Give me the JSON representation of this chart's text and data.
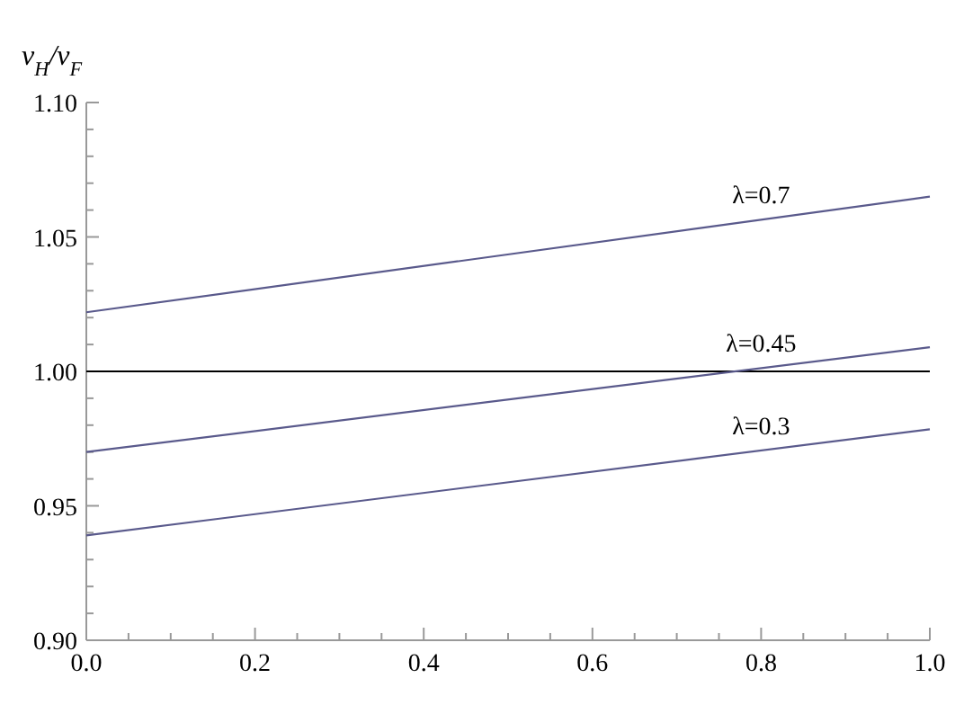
{
  "chart_data": {
    "type": "line",
    "ylabel": "v$_{H}$/v$_{F}$",
    "x": [
      0,
      1
    ],
    "series": [
      {
        "name": "λ=0.7",
        "color": "#5a5a8c",
        "values": [
          1.022,
          1.065
        ]
      },
      {
        "name": "λ=0.45",
        "color": "#5a5a8c",
        "values": [
          0.97,
          1.009
        ]
      },
      {
        "name": "λ=0.3",
        "color": "#5a5a8c",
        "values": [
          0.939,
          0.9785
        ]
      }
    ],
    "ref_lines": [
      {
        "axis": "y",
        "value": 1.0,
        "color": "#000000"
      }
    ],
    "xlim": [
      0,
      1
    ],
    "ylim": [
      0.9,
      1.1
    ],
    "xticks": [
      {
        "value": 0,
        "label": "0.0"
      },
      {
        "value": 0.05,
        "label": null
      },
      {
        "value": 0.1,
        "label": null
      },
      {
        "value": 0.15,
        "label": null
      },
      {
        "value": 0.2,
        "label": "0.2"
      },
      {
        "value": 0.25,
        "label": null
      },
      {
        "value": 0.3,
        "label": null
      },
      {
        "value": 0.35,
        "label": null
      },
      {
        "value": 0.4,
        "label": "0.4"
      },
      {
        "value": 0.45,
        "label": null
      },
      {
        "value": 0.5,
        "label": null
      },
      {
        "value": 0.55,
        "label": null
      },
      {
        "value": 0.6,
        "label": "0.6"
      },
      {
        "value": 0.65,
        "label": null
      },
      {
        "value": 0.7,
        "label": null
      },
      {
        "value": 0.75,
        "label": null
      },
      {
        "value": 0.8,
        "label": "0.8"
      },
      {
        "value": 0.85,
        "label": null
      },
      {
        "value": 0.9,
        "label": null
      },
      {
        "value": 0.95,
        "label": null
      },
      {
        "value": 1,
        "label": "1.0"
      }
    ],
    "yticks": [
      {
        "value": 0.9,
        "label": "0.90"
      },
      {
        "value": 0.91,
        "label": null
      },
      {
        "value": 0.92,
        "label": null
      },
      {
        "value": 0.93,
        "label": null
      },
      {
        "value": 0.94,
        "label": null
      },
      {
        "value": 0.95,
        "label": "0.95"
      },
      {
        "value": 0.96,
        "label": null
      },
      {
        "value": 0.97,
        "label": null
      },
      {
        "value": 0.98,
        "label": null
      },
      {
        "value": 0.99,
        "label": null
      },
      {
        "value": 1.0,
        "label": "1.00"
      },
      {
        "value": 1.01,
        "label": null
      },
      {
        "value": 1.02,
        "label": null
      },
      {
        "value": 1.03,
        "label": null
      },
      {
        "value": 1.04,
        "label": null
      },
      {
        "value": 1.05,
        "label": "1.05"
      },
      {
        "value": 1.06,
        "label": null
      },
      {
        "value": 1.07,
        "label": null
      },
      {
        "value": 1.08,
        "label": null
      },
      {
        "value": 1.09,
        "label": null
      },
      {
        "value": 1.1,
        "label": "1.10"
      }
    ],
    "grid": false,
    "marker": "none",
    "line_style": "solid"
  }
}
